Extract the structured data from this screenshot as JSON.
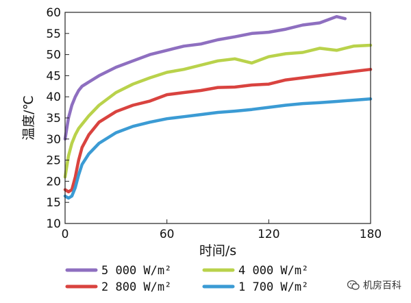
{
  "chart_data": {
    "type": "line",
    "xlabel": "时间/s",
    "ylabel": "温度/℃",
    "xlim": [
      0,
      180
    ],
    "ylim": [
      10,
      60
    ],
    "xticks": [
      0,
      60,
      120,
      180
    ],
    "yticks": [
      10,
      15,
      20,
      25,
      30,
      35,
      40,
      45,
      50,
      55,
      60
    ],
    "grid": false,
    "legend_position": "bottom",
    "series": [
      {
        "name": "5 000 W/m²",
        "color": "#8e6fc0",
        "x": [
          0,
          2,
          4,
          6,
          8,
          10,
          14,
          20,
          30,
          40,
          50,
          60,
          70,
          80,
          90,
          100,
          110,
          120,
          130,
          140,
          150,
          160,
          165
        ],
        "y": [
          30,
          35,
          38,
          40,
          41.5,
          42.5,
          43.5,
          45,
          47,
          48.5,
          50,
          51,
          52,
          52.5,
          53.5,
          54.2,
          55,
          55.3,
          56,
          57,
          57.5,
          59,
          58.5
        ]
      },
      {
        "name": "4 000 W/m²",
        "color": "#b9d24b",
        "x": [
          0,
          2,
          4,
          6,
          8,
          10,
          14,
          20,
          30,
          40,
          50,
          60,
          70,
          80,
          90,
          100,
          110,
          120,
          130,
          140,
          150,
          160,
          170,
          180
        ],
        "y": [
          21,
          26,
          29,
          31,
          32.5,
          33.5,
          35.5,
          38,
          41,
          43,
          44.5,
          45.8,
          46.5,
          47.5,
          48.5,
          49,
          48,
          49.5,
          50.2,
          50.5,
          51.5,
          51,
          52,
          52.2
        ]
      },
      {
        "name": "2 800 W/m²",
        "color": "#d9433f",
        "x": [
          0,
          2,
          4,
          6,
          8,
          10,
          14,
          20,
          30,
          40,
          50,
          60,
          70,
          80,
          90,
          100,
          110,
          120,
          130,
          140,
          150,
          160,
          170,
          180
        ],
        "y": [
          18,
          17.5,
          18,
          21,
          25,
          28,
          31,
          34,
          36.5,
          38,
          39,
          40.5,
          41,
          41.5,
          42.2,
          42.3,
          42.8,
          43,
          44,
          44.5,
          45,
          45.5,
          46,
          46.5
        ]
      },
      {
        "name": "1 700 W/m²",
        "color": "#3b9bd4",
        "x": [
          0,
          2,
          4,
          6,
          8,
          10,
          14,
          20,
          30,
          40,
          50,
          60,
          70,
          80,
          90,
          100,
          110,
          120,
          130,
          140,
          150,
          160,
          170,
          180
        ],
        "y": [
          16.5,
          16,
          16.5,
          18.5,
          21.5,
          24,
          26.5,
          29,
          31.5,
          33,
          34,
          34.8,
          35.3,
          35.8,
          36.3,
          36.6,
          37,
          37.5,
          38,
          38.4,
          38.6,
          38.9,
          39.2,
          39.5
        ]
      }
    ]
  },
  "watermark": {
    "text": "机房百科"
  }
}
